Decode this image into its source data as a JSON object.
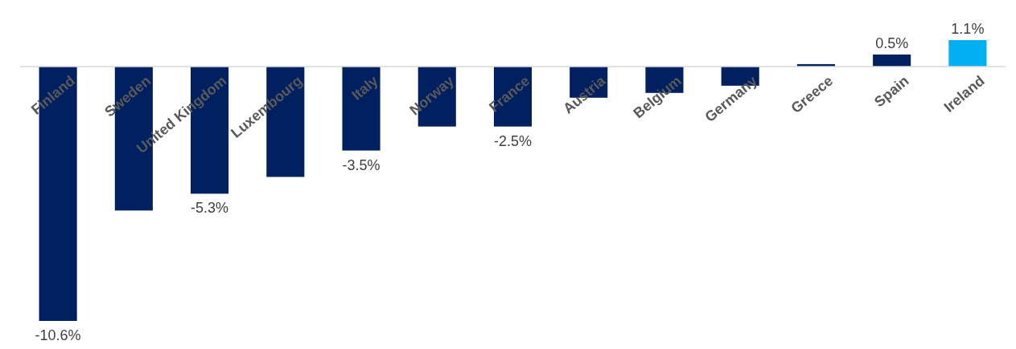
{
  "chart_data": {
    "type": "bar",
    "categories": [
      "Finland",
      "Sweden",
      "United Kingdom",
      "Luxembourg",
      "Italy",
      "Norway",
      "France",
      "Austria",
      "Belgium",
      "Germany",
      "Greece",
      "Spain",
      "Ireland"
    ],
    "values": [
      -10.6,
      -6.0,
      -5.3,
      -4.6,
      -3.5,
      -2.5,
      -2.5,
      -1.3,
      -1.1,
      -0.8,
      0.1,
      0.5,
      1.1
    ],
    "colors": [
      "#002060",
      "#002060",
      "#002060",
      "#002060",
      "#002060",
      "#002060",
      "#002060",
      "#002060",
      "#002060",
      "#002060",
      "#002060",
      "#002060",
      "#00b0f0"
    ],
    "value_labels": [
      "-10.6%",
      null,
      "-5.3%",
      null,
      "-3.5%",
      null,
      "-2.5%",
      null,
      null,
      null,
      null,
      "0.5%",
      "1.1%"
    ]
  }
}
